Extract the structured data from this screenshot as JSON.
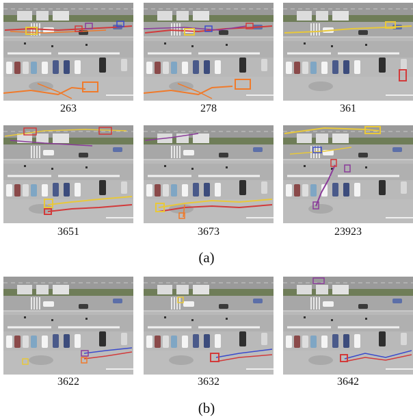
{
  "figure": {
    "group_a": {
      "label": "(a)",
      "frames": [
        {
          "label": "263"
        },
        {
          "label": "278"
        },
        {
          "label": "361"
        },
        {
          "label": "3651"
        },
        {
          "label": "3673"
        },
        {
          "label": "23923"
        }
      ]
    },
    "group_b": {
      "label": "(b)",
      "frames": [
        {
          "label": "3622"
        },
        {
          "label": "3632"
        },
        {
          "label": "3642"
        }
      ]
    }
  },
  "colors": {
    "track_red": "#d23a3a",
    "track_orange": "#f07a2a",
    "track_yellow": "#e8c83a",
    "track_purple": "#8a3a9a",
    "track_blue": "#3a4acc",
    "asphalt": "#b5b5b5",
    "median_green": "#6f7d58"
  }
}
